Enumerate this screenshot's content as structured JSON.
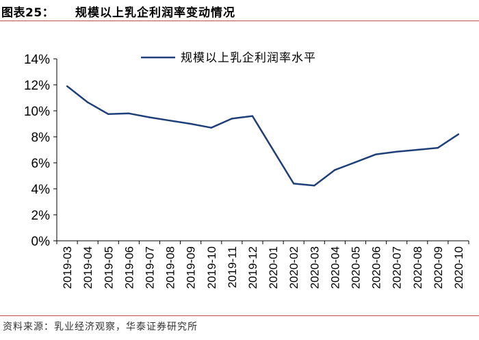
{
  "header": {
    "label": "图表25：",
    "title": "规模以上乳企利润率变动情况"
  },
  "footer": {
    "source": "资料来源：乳业经济观察，华泰证券研究所"
  },
  "colors": {
    "line": "#1f3f7a",
    "rule": "#c0504d",
    "axis": "#000000"
  },
  "chart_data": {
    "type": "line",
    "title": "",
    "xlabel": "",
    "ylabel": "",
    "ylim": [
      0,
      14
    ],
    "y_ticks": [
      "0%",
      "2%",
      "4%",
      "6%",
      "8%",
      "10%",
      "12%",
      "14%"
    ],
    "y_tick_values": [
      0,
      2,
      4,
      6,
      8,
      10,
      12,
      14
    ],
    "categories": [
      "2019-03",
      "2019-04",
      "2019-05",
      "2019-06",
      "2019-07",
      "2019-08",
      "2019-09",
      "2019-10",
      "2019-11",
      "2019-12",
      "2020-01",
      "2020-02",
      "2020-03",
      "2020-04",
      "2020-05",
      "2020-06",
      "2020-07",
      "2020-08",
      "2020-09",
      "2020-10"
    ],
    "series": [
      {
        "name": "规模以上乳企利润率水平",
        "values": [
          11.9,
          10.65,
          9.75,
          9.8,
          9.5,
          9.25,
          9.0,
          8.7,
          9.4,
          9.6,
          null,
          4.4,
          4.25,
          5.45,
          6.05,
          6.65,
          6.85,
          7.0,
          7.15,
          8.2
        ]
      }
    ],
    "grid": false,
    "legend_position": "top-right"
  }
}
